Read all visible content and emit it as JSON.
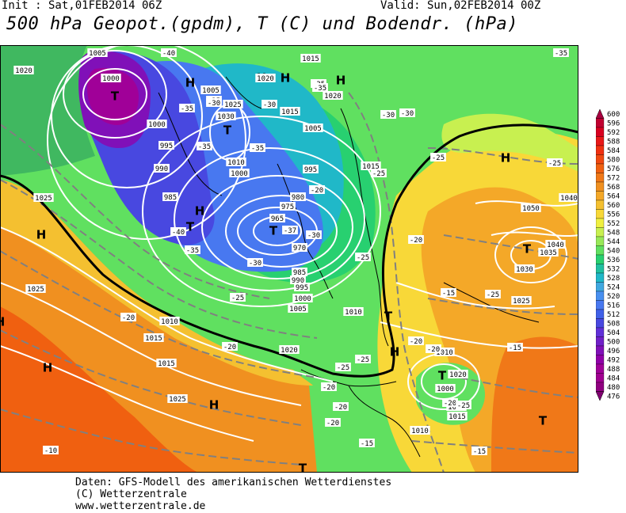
{
  "header": {
    "init": "Init : Sat,01FEB2014 06Z",
    "valid": "Valid: Sun,02FEB2014 00Z",
    "title": "500 hPa Geopot.(gpdm), T (C) und Bodendr. (hPa)"
  },
  "footer": {
    "line1": "Daten: GFS-Modell des amerikanischen Wetterdienstes",
    "line2": "(C) Wetterzentrale",
    "line3": "www.wetterzentrale.de"
  },
  "legend": {
    "values": [
      "600",
      "596",
      "592",
      "588",
      "584",
      "580",
      "576",
      "572",
      "568",
      "564",
      "560",
      "556",
      "552",
      "548",
      "544",
      "540",
      "536",
      "532",
      "528",
      "524",
      "520",
      "516",
      "512",
      "508",
      "504",
      "500",
      "496",
      "492",
      "488",
      "484",
      "480",
      "476"
    ],
    "colors": [
      "#a80040",
      "#c00030",
      "#d80020",
      "#e81818",
      "#f03010",
      "#f04810",
      "#f06010",
      "#f07818",
      "#f09020",
      "#f4a828",
      "#f4c030",
      "#f8d838",
      "#f0f040",
      "#c8f050",
      "#98e858",
      "#60e060",
      "#28d070",
      "#20c0a0",
      "#20b8c8",
      "#40a8e0",
      "#4890f0",
      "#4878f0",
      "#4060e8",
      "#4848e0",
      "#6030d8",
      "#7020c8",
      "#8010b8",
      "#9000a8",
      "#a00098",
      "#a00090",
      "#900080",
      "#800070"
    ]
  },
  "pressure_systems": [
    {
      "type": "H"
    },
    {
      "type": "H"
    },
    {
      "type": "H"
    },
    {
      "type": "H"
    },
    {
      "type": "H"
    },
    {
      "type": "H"
    },
    {
      "type": "H"
    },
    {
      "type": "H"
    },
    {
      "type": "H"
    },
    {
      "type": "H"
    },
    {
      "type": "H"
    },
    {
      "type": "T"
    },
    {
      "type": "T"
    },
    {
      "type": "T"
    },
    {
      "type": "T"
    },
    {
      "type": "T"
    },
    {
      "type": "T"
    },
    {
      "type": "T"
    },
    {
      "type": "T"
    },
    {
      "type": "T"
    }
  ],
  "pressure_labels": [
    "1005",
    "1000",
    "1020",
    "1015",
    "1005",
    "1025",
    "1030",
    "1020",
    "1015",
    "1000",
    "1005",
    "995",
    "990",
    "1010",
    "985",
    "1000",
    "995",
    "980",
    "975",
    "965",
    "970",
    "985",
    "990",
    "995",
    "1000",
    "1005",
    "1010",
    "1015",
    "1010",
    "1015",
    "1020",
    "1025",
    "1025",
    "1020",
    "1025",
    "1015",
    "1010",
    "1005",
    "1000",
    "1010",
    "1015",
    "1020",
    "1040",
    "1050",
    "1035",
    "1040",
    "1030",
    "1025"
  ],
  "temp_labels": [
    "-40",
    "-35",
    "-35",
    "-30",
    "-35",
    "-35",
    "-30",
    "-30",
    "-35",
    "-40",
    "-35",
    "-30",
    "-25",
    "-37",
    "-30",
    "-25",
    "-20",
    "-20",
    "-15",
    "-20",
    "-25",
    "-20",
    "-25",
    "-30",
    "-25",
    "-20",
    "-20",
    "-25",
    "-35",
    "-25",
    "-25",
    "-20",
    "-20",
    "-20",
    "-15",
    "-15",
    "-10",
    "-15",
    "-20",
    "-25",
    "-35"
  ]
}
